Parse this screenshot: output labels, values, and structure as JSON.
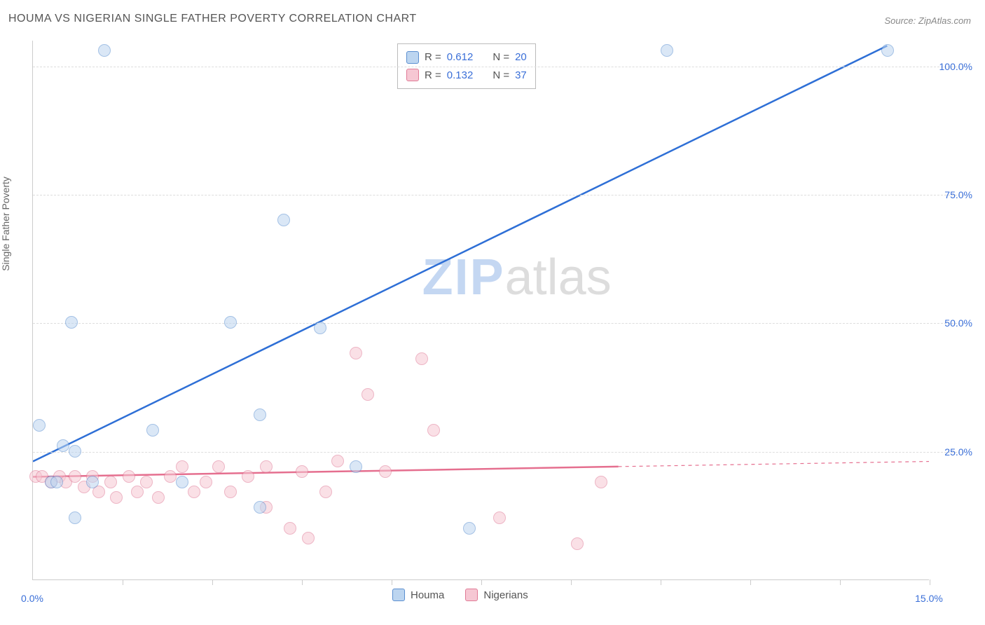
{
  "title": "HOUMA VS NIGERIAN SINGLE FATHER POVERTY CORRELATION CHART",
  "source": "Source: ZipAtlas.com",
  "y_axis_label": "Single Father Poverty",
  "watermark": {
    "part1": "ZIP",
    "part2": "atlas"
  },
  "chart": {
    "type": "scatter",
    "background_color": "#ffffff",
    "grid_color": "#dddddd",
    "axis_color": "#cccccc",
    "xlim": [
      0,
      15
    ],
    "ylim": [
      0,
      105
    ],
    "x_ticks": [
      1.5,
      3.0,
      4.5,
      6.0,
      7.5,
      9.0,
      10.5,
      12.0,
      13.5,
      15.0
    ],
    "x_tick_labels": [
      {
        "x": 0.0,
        "label": "0.0%"
      },
      {
        "x": 15.0,
        "label": "15.0%"
      }
    ],
    "y_ticks": [
      {
        "y": 25,
        "label": "25.0%"
      },
      {
        "y": 50,
        "label": "50.0%"
      },
      {
        "y": 75,
        "label": "75.0%"
      },
      {
        "y": 100,
        "label": "100.0%"
      }
    ],
    "marker_radius": 9,
    "marker_opacity": 0.55,
    "title_fontsize": 16,
    "label_fontsize": 14
  },
  "series": {
    "houma": {
      "name": "Houma",
      "color": "#6fa3e0",
      "fill": "#bcd5f0",
      "stroke": "#5b8fd0",
      "R": "0.612",
      "N": "20",
      "trend": {
        "x1": 0,
        "y1": 23,
        "x2": 14.3,
        "y2": 104,
        "line_width": 2.5,
        "dash": "none"
      },
      "points": [
        {
          "x": 0.1,
          "y": 30
        },
        {
          "x": 0.5,
          "y": 26
        },
        {
          "x": 0.7,
          "y": 25
        },
        {
          "x": 0.65,
          "y": 50
        },
        {
          "x": 0.7,
          "y": 12
        },
        {
          "x": 1.2,
          "y": 103
        },
        {
          "x": 2.0,
          "y": 29
        },
        {
          "x": 3.3,
          "y": 50
        },
        {
          "x": 3.8,
          "y": 32
        },
        {
          "x": 3.8,
          "y": 14
        },
        {
          "x": 4.2,
          "y": 70
        },
        {
          "x": 4.8,
          "y": 49
        },
        {
          "x": 5.4,
          "y": 22
        },
        {
          "x": 7.3,
          "y": 10
        },
        {
          "x": 10.6,
          "y": 103
        },
        {
          "x": 14.3,
          "y": 103
        },
        {
          "x": 0.3,
          "y": 19
        },
        {
          "x": 0.4,
          "y": 19
        },
        {
          "x": 1.0,
          "y": 19
        },
        {
          "x": 2.5,
          "y": 19
        }
      ]
    },
    "nigerians": {
      "name": "Nigerians",
      "color": "#e98ba4",
      "fill": "#f6c7d3",
      "stroke": "#e07a96",
      "R": "0.132",
      "N": "37",
      "trend": {
        "x1": 0,
        "y1": 20,
        "x2": 9.8,
        "y2": 22,
        "extend_x2": 15,
        "extend_y2": 23,
        "line_width": 2.5
      },
      "points": [
        {
          "x": 0.05,
          "y": 20
        },
        {
          "x": 0.15,
          "y": 20
        },
        {
          "x": 0.3,
          "y": 19
        },
        {
          "x": 0.45,
          "y": 20
        },
        {
          "x": 0.55,
          "y": 19
        },
        {
          "x": 0.7,
          "y": 20
        },
        {
          "x": 0.85,
          "y": 18
        },
        {
          "x": 1.0,
          "y": 20
        },
        {
          "x": 1.1,
          "y": 17
        },
        {
          "x": 1.3,
          "y": 19
        },
        {
          "x": 1.4,
          "y": 16
        },
        {
          "x": 1.6,
          "y": 20
        },
        {
          "x": 1.75,
          "y": 17
        },
        {
          "x": 1.9,
          "y": 19
        },
        {
          "x": 2.1,
          "y": 16
        },
        {
          "x": 2.3,
          "y": 20
        },
        {
          "x": 2.5,
          "y": 22
        },
        {
          "x": 2.7,
          "y": 17
        },
        {
          "x": 2.9,
          "y": 19
        },
        {
          "x": 3.1,
          "y": 22
        },
        {
          "x": 3.3,
          "y": 17
        },
        {
          "x": 3.6,
          "y": 20
        },
        {
          "x": 3.9,
          "y": 22
        },
        {
          "x": 3.9,
          "y": 14
        },
        {
          "x": 4.3,
          "y": 10
        },
        {
          "x": 4.5,
          "y": 21
        },
        {
          "x": 4.6,
          "y": 8
        },
        {
          "x": 4.9,
          "y": 17
        },
        {
          "x": 5.1,
          "y": 23
        },
        {
          "x": 5.4,
          "y": 44
        },
        {
          "x": 5.6,
          "y": 36
        },
        {
          "x": 5.9,
          "y": 21
        },
        {
          "x": 6.5,
          "y": 43
        },
        {
          "x": 6.7,
          "y": 29
        },
        {
          "x": 7.8,
          "y": 12
        },
        {
          "x": 9.1,
          "y": 7
        },
        {
          "x": 9.5,
          "y": 19
        }
      ]
    }
  },
  "stats_box": {
    "rows": [
      {
        "swatch_series": "houma",
        "r_label": "R =",
        "n_label": "N ="
      },
      {
        "swatch_series": "nigerians",
        "r_label": "R =",
        "n_label": "N ="
      }
    ]
  },
  "legend": {
    "position": "bottom",
    "items": [
      "houma",
      "nigerians"
    ]
  }
}
